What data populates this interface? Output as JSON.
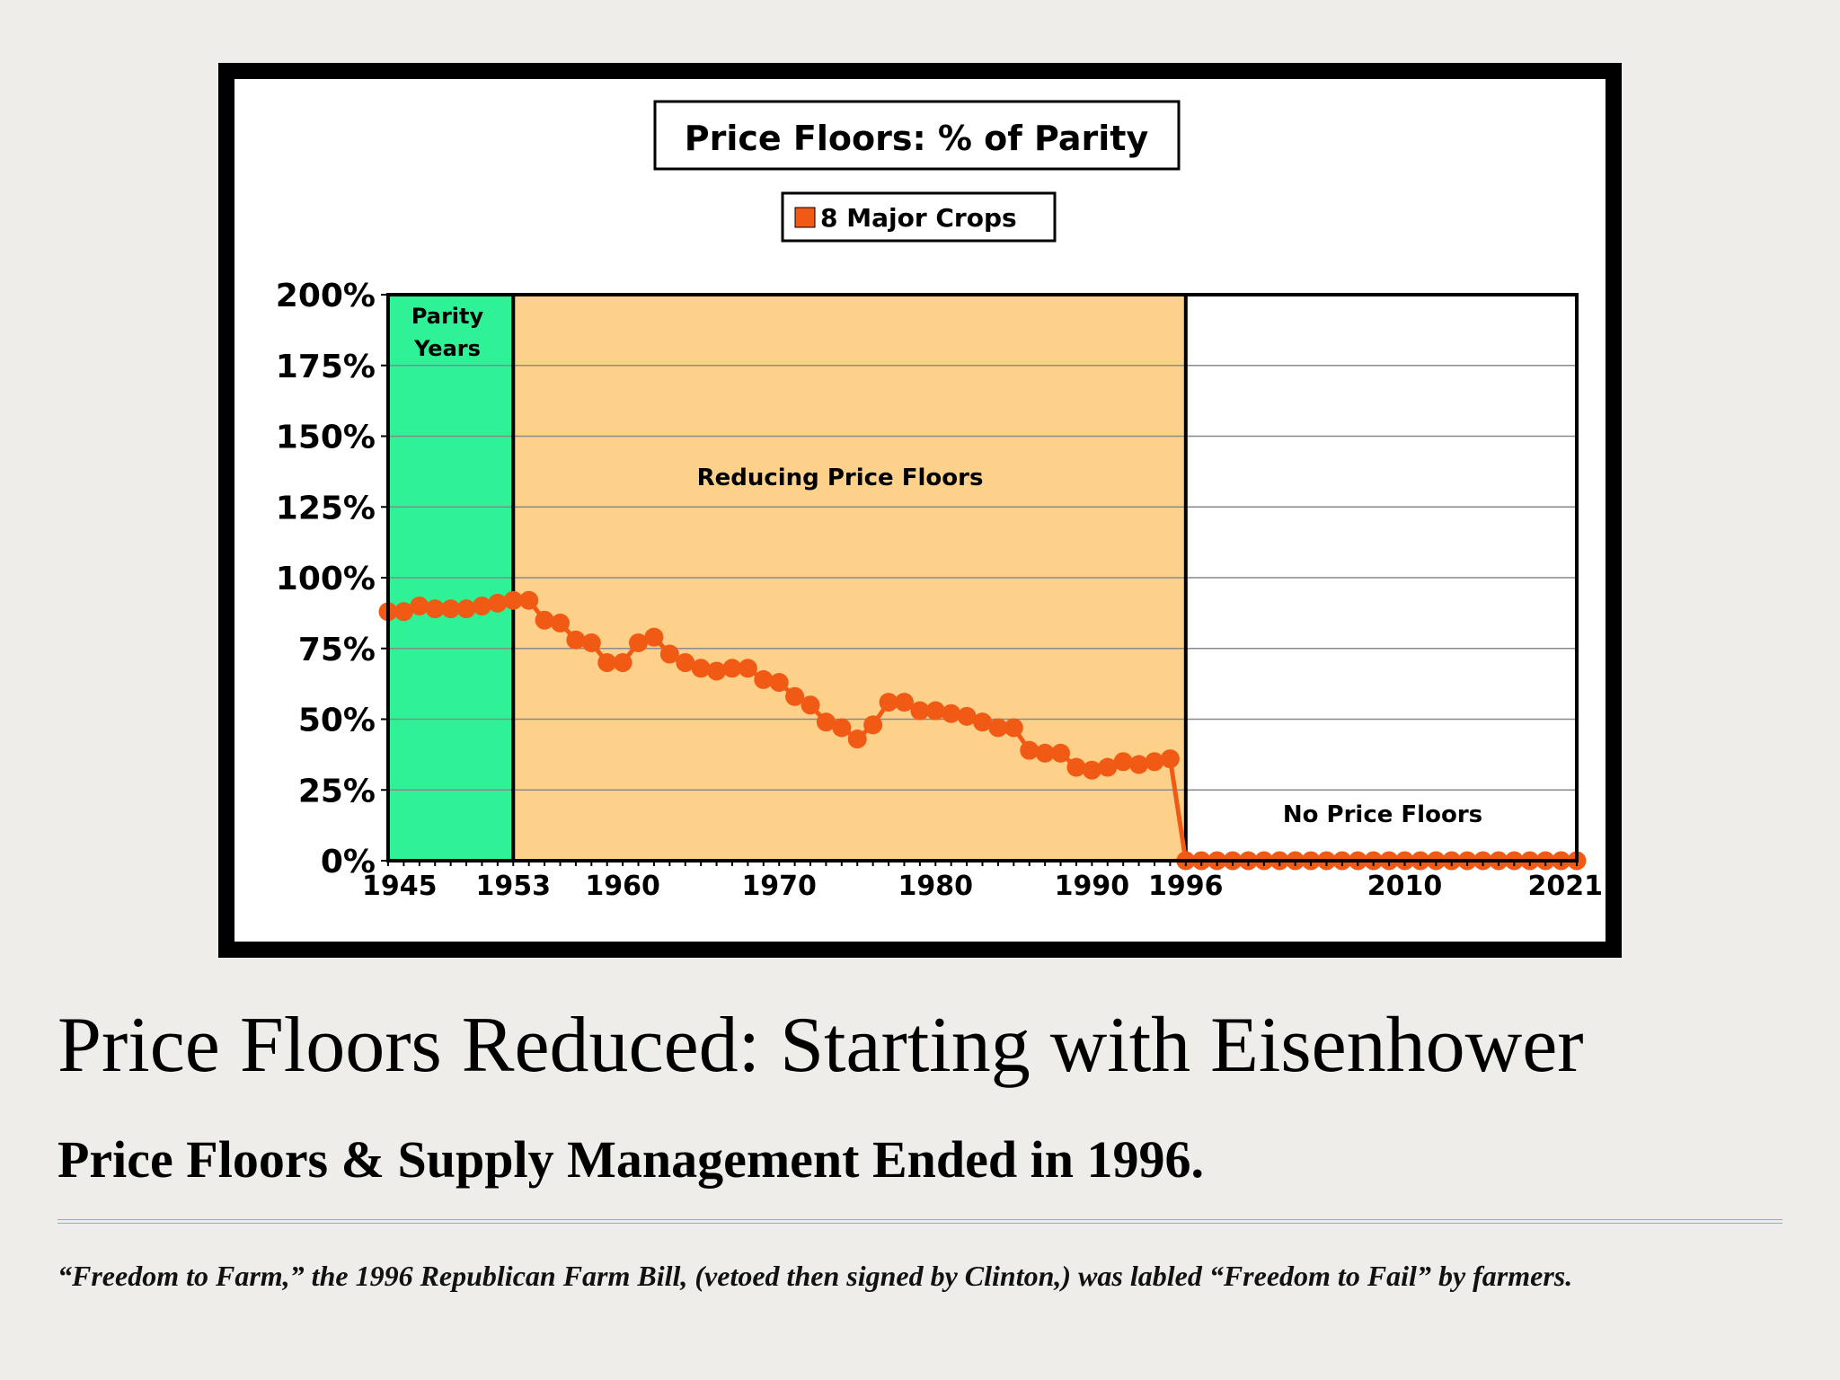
{
  "slide": {
    "title": "Price Floors Reduced:  Starting with Eisenhower",
    "subtitle": "Price Floors & Supply Management Ended in 1996.",
    "footnote": "“Freedom to Farm,” the 1996 Republican Farm Bill, (vetoed then signed by Clinton,) was labled “Freedom to Fail” by farmers."
  },
  "chart_data": {
    "type": "line",
    "title": "Price Floors:  % of Parity",
    "xlabel": "",
    "ylabel": "",
    "ylim": [
      0,
      200
    ],
    "xlim": [
      1945,
      2021
    ],
    "grid": true,
    "legend_position": "top-center",
    "y_ticks": [
      "0%",
      "25%",
      "50%",
      "75%",
      "100%",
      "125%",
      "150%",
      "175%",
      "200%"
    ],
    "y_tick_values": [
      0,
      25,
      50,
      75,
      100,
      125,
      150,
      175,
      200
    ],
    "x_ticks": [
      "1945",
      "1953",
      "1960",
      "1970",
      "1980",
      "1990",
      "1996",
      "2010",
      "2021"
    ],
    "x_tick_values": [
      1945,
      1953,
      1960,
      1970,
      1980,
      1990,
      1996,
      2010,
      2021
    ],
    "regions": [
      {
        "label": "Parity\nYears",
        "start": 1945,
        "end": 1953,
        "color": "#2ef295"
      },
      {
        "label": "Reducing Price Floors",
        "start": 1953,
        "end": 1996,
        "color": "#fdd18a"
      },
      {
        "label": "No Price Floors",
        "start": 1996,
        "end": 2021,
        "color": "#ffffff"
      }
    ],
    "series": [
      {
        "name": "8 Major Crops",
        "color": "#f15a14",
        "x": [
          1945,
          1946,
          1947,
          1948,
          1949,
          1950,
          1951,
          1952,
          1953,
          1954,
          1955,
          1956,
          1957,
          1958,
          1959,
          1960,
          1961,
          1962,
          1963,
          1964,
          1965,
          1966,
          1967,
          1968,
          1969,
          1970,
          1971,
          1972,
          1973,
          1974,
          1975,
          1976,
          1977,
          1978,
          1979,
          1980,
          1981,
          1982,
          1983,
          1984,
          1985,
          1986,
          1987,
          1988,
          1989,
          1990,
          1991,
          1992,
          1993,
          1994,
          1995,
          1996,
          1997,
          1998,
          1999,
          2000,
          2001,
          2002,
          2003,
          2004,
          2005,
          2006,
          2007,
          2008,
          2009,
          2010,
          2011,
          2012,
          2013,
          2014,
          2015,
          2016,
          2017,
          2018,
          2019,
          2020,
          2021
        ],
        "values": [
          88,
          88,
          90,
          89,
          89,
          89,
          90,
          91,
          92,
          92,
          85,
          84,
          78,
          77,
          70,
          70,
          77,
          79,
          73,
          70,
          68,
          67,
          68,
          68,
          64,
          63,
          58,
          55,
          49,
          47,
          43,
          48,
          56,
          56,
          53,
          53,
          52,
          51,
          49,
          47,
          47,
          39,
          38,
          38,
          33,
          32,
          33,
          35,
          34,
          35,
          36,
          0,
          0,
          0,
          0,
          0,
          0,
          0,
          0,
          0,
          0,
          0,
          0,
          0,
          0,
          0,
          0,
          0,
          0,
          0,
          0,
          0,
          0,
          0,
          0,
          0,
          0
        ]
      }
    ]
  }
}
